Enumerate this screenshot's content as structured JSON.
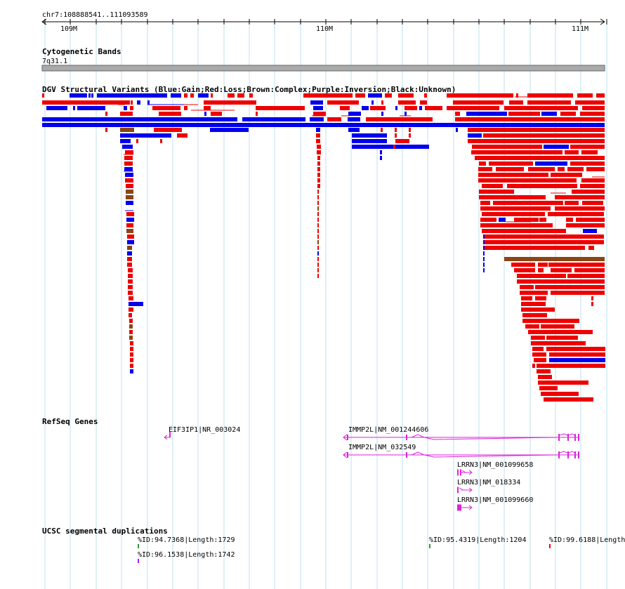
{
  "ruler": {
    "position_label": "chr7:108888541..111093589",
    "ticks": [
      "109M",
      "110M",
      "111M"
    ]
  },
  "cytoband": {
    "title": "Cytogenetic Bands",
    "band_label": "7q31.1"
  },
  "dgv": {
    "title": "DGV Structural Variants (Blue:Gain;Red:Loss;Brown:Complex;Purple:Inversion;Black:Unknown)",
    "colors": {
      "gain": "#0000ee",
      "loss": "#ee0000",
      "complex": "#8b4513",
      "inversion": "#a020f0",
      "unknown": "#000000"
    }
  },
  "refseq": {
    "title": "RefSeq Genes",
    "gene_color": "#dd22dd",
    "genes": [
      {
        "label": "EIF3IP1|NR_003024"
      },
      {
        "label": "IMMP2L|NM_001244606"
      },
      {
        "label": "IMMP2L|NM_032549"
      },
      {
        "label": "LRRN3|NM_001099658"
      },
      {
        "label": "LRRN3|NM_018334"
      },
      {
        "label": "LRRN3|NM_001099660"
      }
    ]
  },
  "segdup": {
    "title": "UCSC segmental duplications",
    "items": [
      {
        "label": "%ID:94.7368|Length:1729",
        "color": "#339933"
      },
      {
        "label": "%ID:96.1538|Length:1742",
        "color": "#a020f0"
      },
      {
        "label": "%ID:95.4319|Length:1204",
        "color": "#339933"
      },
      {
        "label": "%ID:99.6188|Length:",
        "color": "#ee0000"
      }
    ]
  }
}
